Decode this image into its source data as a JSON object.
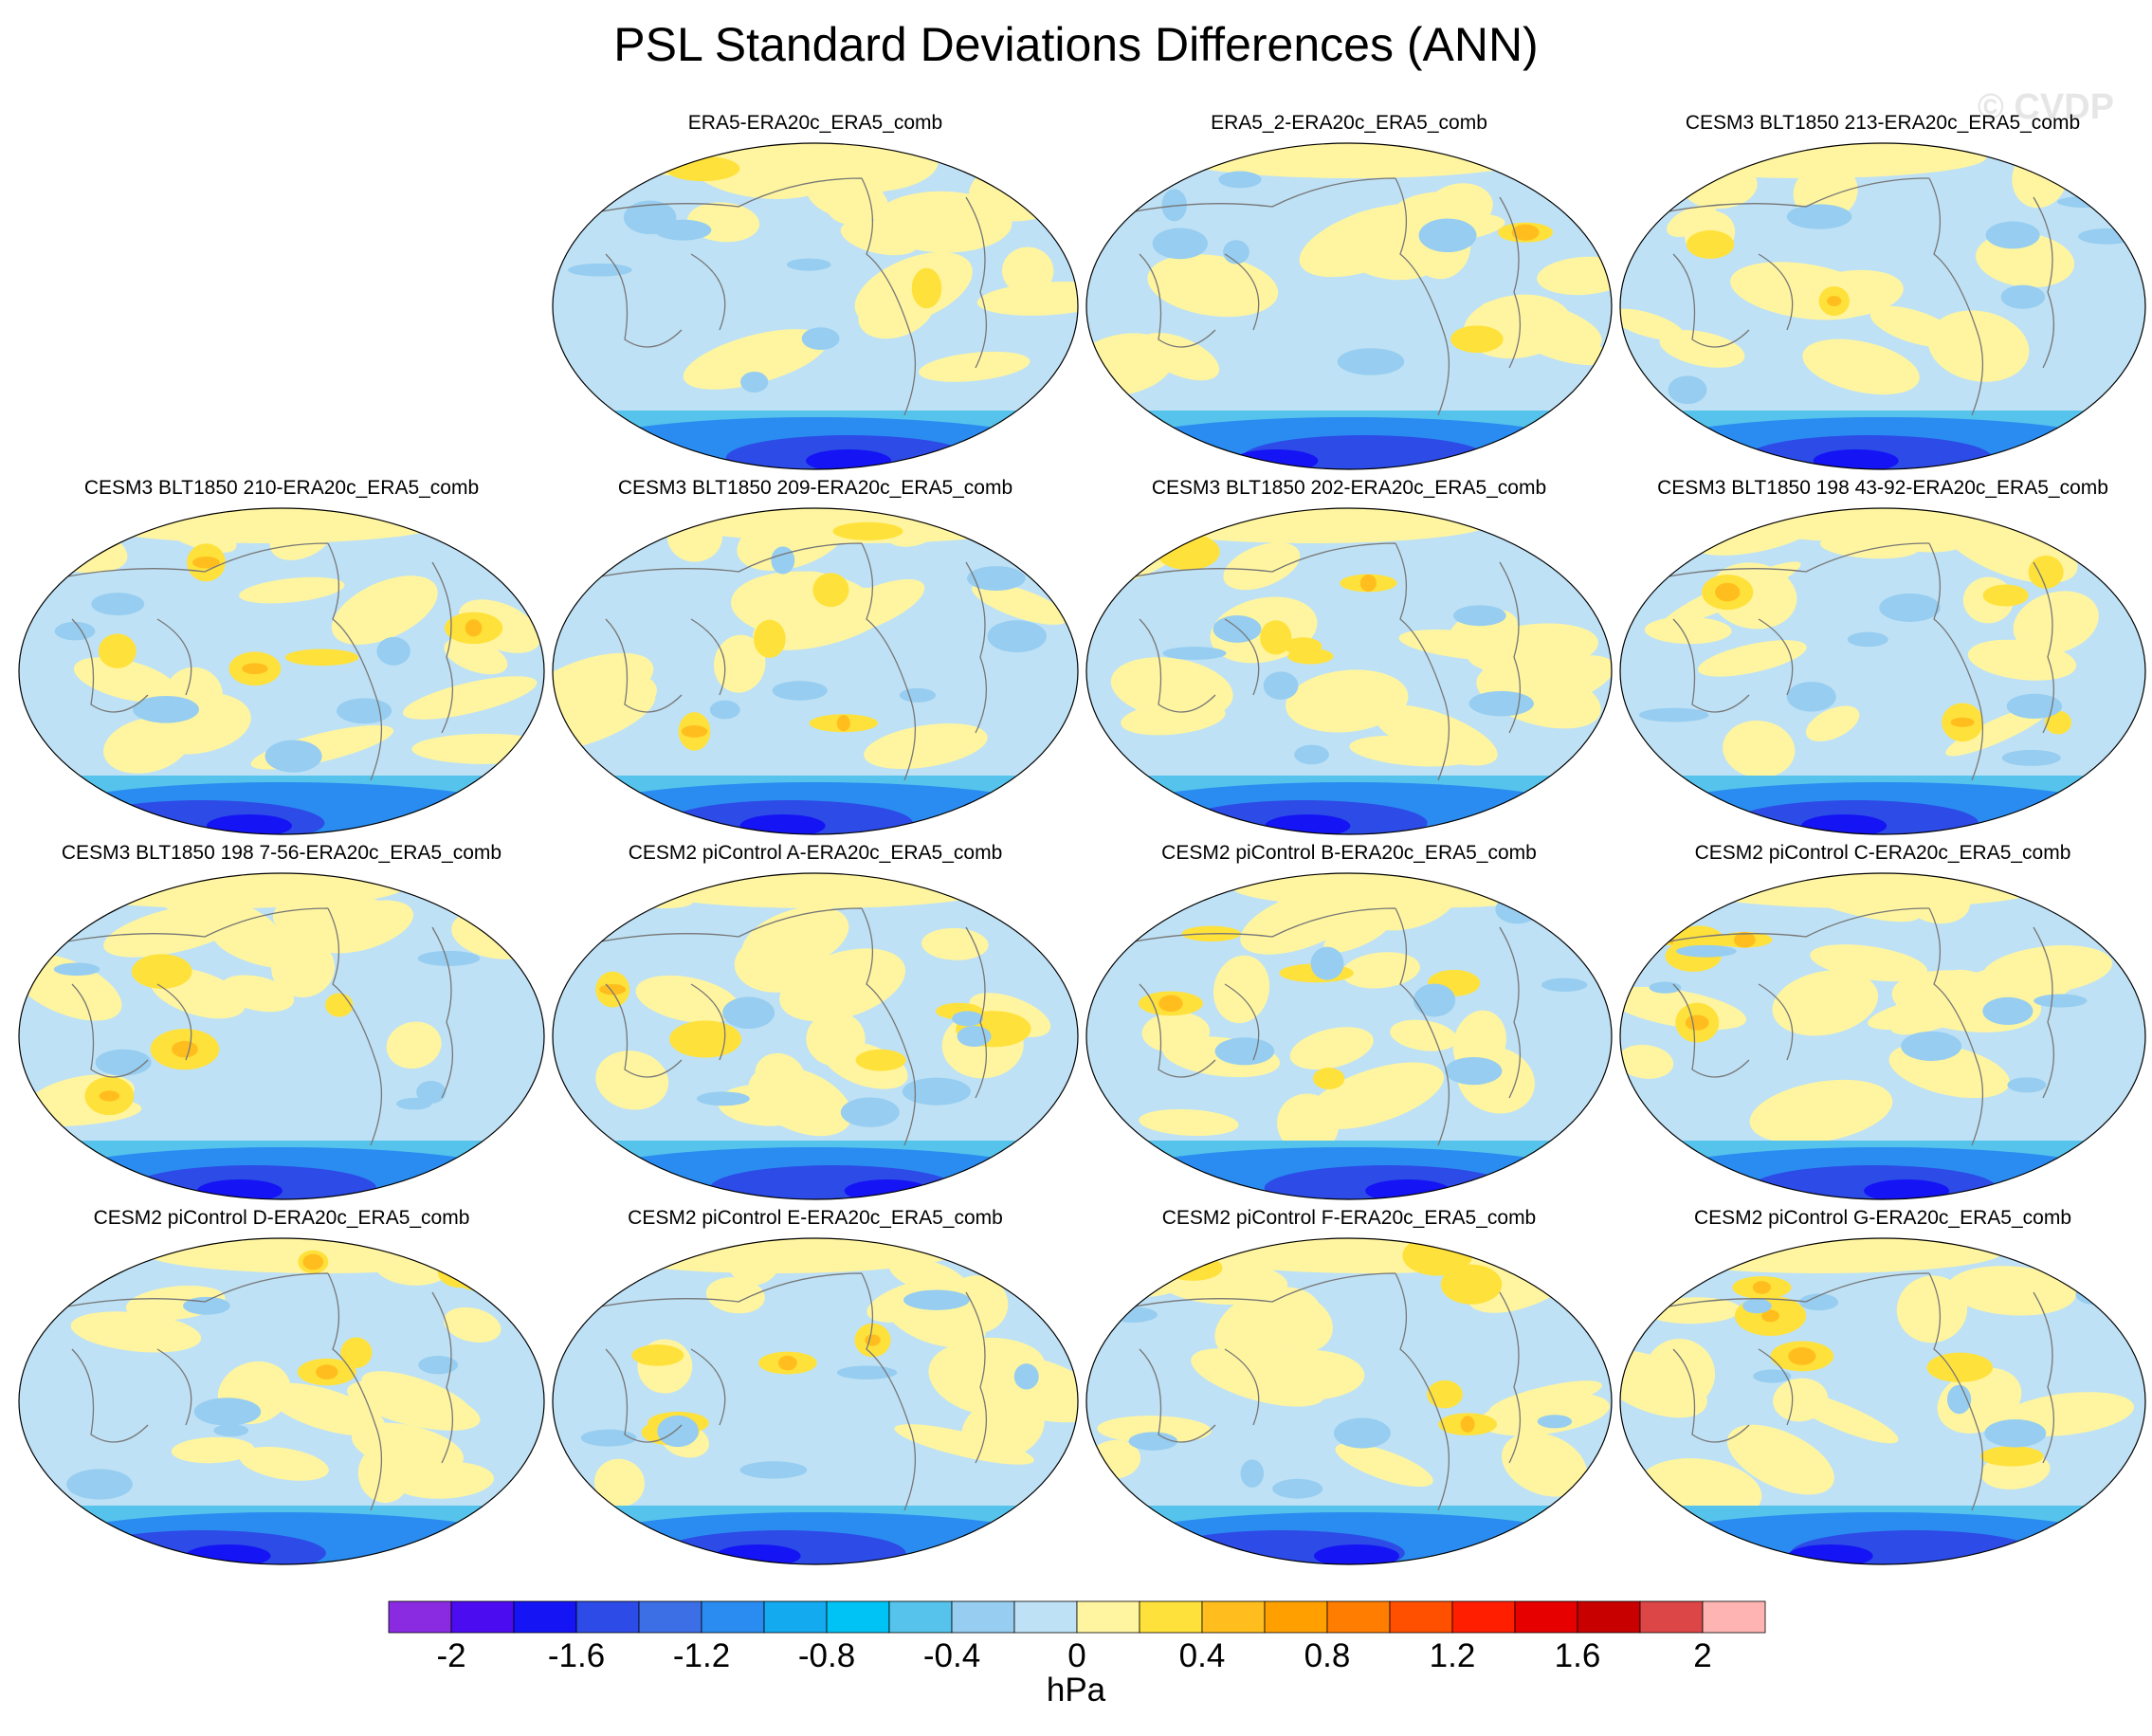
{
  "title": "PSL Standard Deviations Differences (ANN)",
  "watermark": "© CVDP",
  "panels": [
    {
      "title": "ERA5-ERA20c_ERA5_comb",
      "row": 0,
      "col": 1
    },
    {
      "title": "ERA5_2-ERA20c_ERA5_comb",
      "row": 0,
      "col": 2
    },
    {
      "title": "CESM3 BLT1850 213-ERA20c_ERA5_comb",
      "row": 0,
      "col": 3
    },
    {
      "title": "CESM3 BLT1850 210-ERA20c_ERA5_comb",
      "row": 1,
      "col": 0
    },
    {
      "title": "CESM3 BLT1850 209-ERA20c_ERA5_comb",
      "row": 1,
      "col": 1
    },
    {
      "title": "CESM3 BLT1850 202-ERA20c_ERA5_comb",
      "row": 1,
      "col": 2
    },
    {
      "title": "CESM3 BLT1850 198 43-92-ERA20c_ERA5_comb",
      "row": 1,
      "col": 3
    },
    {
      "title": "CESM3 BLT1850 198 7-56-ERA20c_ERA5_comb",
      "row": 2,
      "col": 0
    },
    {
      "title": "CESM2 piControl A-ERA20c_ERA5_comb",
      "row": 2,
      "col": 1
    },
    {
      "title": "CESM2 piControl B-ERA20c_ERA5_comb",
      "row": 2,
      "col": 2
    },
    {
      "title": "CESM2 piControl C-ERA20c_ERA5_comb",
      "row": 2,
      "col": 3
    },
    {
      "title": "CESM2 piControl D-ERA20c_ERA5_comb",
      "row": 3,
      "col": 0
    },
    {
      "title": "CESM2 piControl E-ERA20c_ERA5_comb",
      "row": 3,
      "col": 1
    },
    {
      "title": "CESM2 piControl F-ERA20c_ERA5_comb",
      "row": 3,
      "col": 2
    },
    {
      "title": "CESM2 piControl G-ERA20c_ERA5_comb",
      "row": 3,
      "col": 3
    }
  ],
  "colorbar": {
    "units": "hPa",
    "colors": [
      "#8a2be2",
      "#4b0cf0",
      "#1414f5",
      "#2d4be6",
      "#3c6ee6",
      "#2a8cf0",
      "#14aaf0",
      "#00c3f5",
      "#55c3eb",
      "#96cdf0",
      "#bee1f5",
      "#fff5a0",
      "#ffe13c",
      "#ffbe1e",
      "#ffa000",
      "#ff7d00",
      "#ff5000",
      "#ff1e00",
      "#e60000",
      "#c80000",
      "#dc4646",
      "#ffb4b4"
    ],
    "tick_labels": [
      "-2",
      "-1.6",
      "-1.2",
      "-0.8",
      "-0.4",
      "0",
      "0.4",
      "0.8",
      "1.2",
      "1.6",
      "2"
    ]
  }
}
